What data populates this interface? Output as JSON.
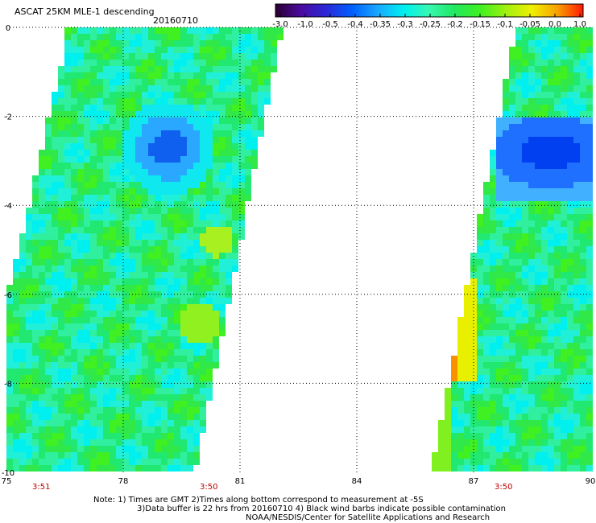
{
  "header": {
    "title": "ASCAT 25KM MLE-1 descending",
    "date": "20160710"
  },
  "colorbar": {
    "labels": [
      "-3.0",
      "-1.0",
      "-0.5",
      "-0.4",
      "-0.35",
      "-0.3",
      "-0.25",
      "-0.2",
      "-0.15",
      "-0.1",
      "-0.05",
      "0.0",
      "1.0"
    ],
    "colors": [
      "#2a0030",
      "#4b0aa0",
      "#2a28d8",
      "#0060ff",
      "#18a8ff",
      "#00f0f0",
      "#38f8b0",
      "#20e860",
      "#40f020",
      "#a0f010",
      "#f0f000",
      "#f8a000",
      "#ff1800"
    ]
  },
  "axes": {
    "x_ticks": [
      "75",
      "78",
      "81",
      "84",
      "87",
      "90"
    ],
    "y_ticks": [
      "0",
      "-2",
      "-4",
      "-6",
      "-8",
      "-10"
    ],
    "xlim": [
      75,
      90
    ],
    "ylim": [
      0,
      -10
    ]
  },
  "times": [
    "3:51",
    "3:50",
    "3:50"
  ],
  "notes": {
    "line1": "Note: 1) Times are GMT 2)Times along bottom correspond to measurement at -5S",
    "line2": "3)Data buffer is 22 hrs from 20160710 4) Black wind barbs indicate possible contamination",
    "line3": "NOAA/NESDIS/Center for Satellite Applications and Research"
  }
}
